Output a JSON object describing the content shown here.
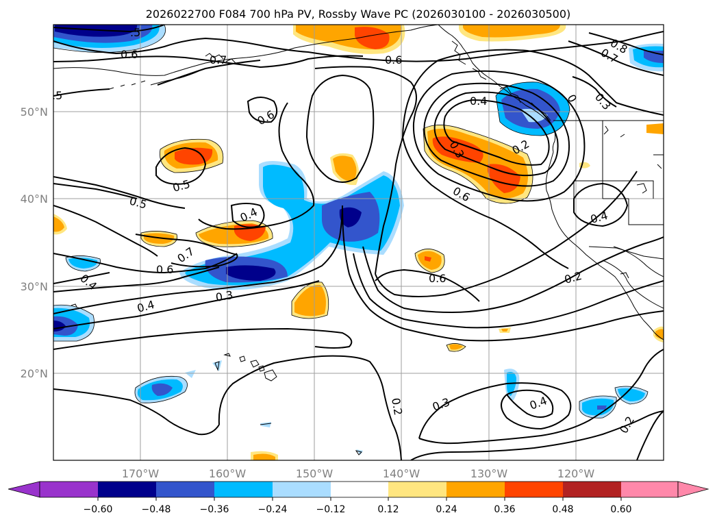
{
  "title": "2026022700 F084 700 hPa PV, Rossby Wave PC (2026030100 - 2026030500)",
  "map": {
    "lon_labels": [
      "170°W",
      "160°W",
      "150°W",
      "140°W",
      "130°W",
      "120°W"
    ],
    "lat_labels": [
      "50°N",
      "40°N",
      "30°N",
      "20°N"
    ]
  },
  "contour_labels": [
    {
      "id": "c1",
      "text": ".5"
    },
    {
      "id": "c2",
      "text": "0.6"
    },
    {
      "id": "c3",
      "text": "0.7"
    },
    {
      "id": "c4",
      "text": ".5"
    },
    {
      "id": "c5",
      "text": "0.6"
    },
    {
      "id": "c6",
      "text": "0.4"
    },
    {
      "id": "c7",
      "text": "0.8"
    },
    {
      "id": "c8",
      "text": "0.7"
    },
    {
      "id": "c9",
      "text": "0.3"
    },
    {
      "id": "c10",
      "text": "0.6"
    },
    {
      "id": "c11",
      "text": "0.5"
    },
    {
      "id": "c12",
      "text": "0.5"
    },
    {
      "id": "c13",
      "text": "0.4"
    },
    {
      "id": "c14",
      "text": "0.7"
    },
    {
      "id": "c15",
      "text": "0.6"
    },
    {
      "id": "c16",
      "text": "0.4"
    },
    {
      "id": "c17",
      "text": "0.3"
    },
    {
      "id": "c18",
      "text": "0.4"
    },
    {
      "id": "c19",
      "text": "0.6"
    },
    {
      "id": "c20",
      "text": "0.3"
    },
    {
      "id": "c21",
      "text": "0.2"
    },
    {
      "id": "c22",
      "text": "0.6"
    },
    {
      "id": "c23",
      "text": "0.4"
    },
    {
      "id": "c24",
      "text": "0.2"
    },
    {
      "id": "c25",
      "text": "0.2"
    },
    {
      "id": "c26",
      "text": "0.3"
    },
    {
      "id": "c27",
      "text": "0.4"
    },
    {
      "id": "c28",
      "text": "0.2"
    },
    {
      "id": "c29",
      "text": "0"
    }
  ],
  "colorbar": {
    "ticks": [
      "−0.60",
      "−0.48",
      "−0.36",
      "−0.24",
      "−0.12",
      "0.12",
      "0.24",
      "0.36",
      "0.48",
      "0.60"
    ],
    "colors": {
      "lt_below": "#9933cc",
      "neg_060_048": "#00008b",
      "neg_048_036": "#3355cc",
      "neg_036_024": "#00bbff",
      "neg_024_012": "#aaddff",
      "neutral": "#ffffff",
      "pos_012_024": "#ffe680",
      "pos_024_036": "#ffa500",
      "pos_036_048": "#ff4400",
      "pos_048_060": "#b22222",
      "gt_above": "#ff88aa"
    }
  }
}
